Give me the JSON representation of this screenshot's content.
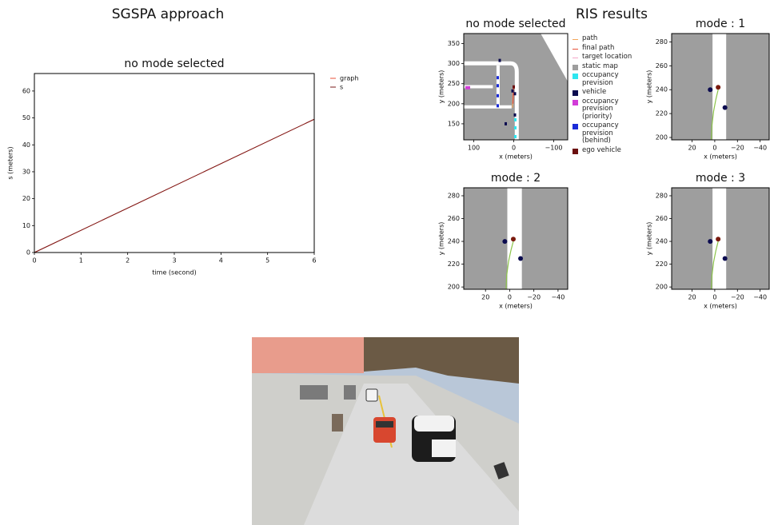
{
  "headings": {
    "left": "SGSPA approach",
    "right": "RIS results"
  },
  "chart_data": [
    {
      "type": "line",
      "title": "no mode selected",
      "xlabel": "time (second)",
      "ylabel": "s (meters)",
      "xlim": [
        0,
        6
      ],
      "ylim": [
        0,
        66.5
      ],
      "xticks": [
        0,
        1,
        2,
        3,
        4,
        5,
        6
      ],
      "yticks": [
        0,
        10,
        20,
        30,
        40,
        50,
        60
      ],
      "background": "#ffffff",
      "legend_loc": "outside right",
      "series": [
        {
          "name": "graph",
          "color": "#e8513a",
          "marker": "line",
          "x": [
            0,
            6
          ],
          "values": [
            0,
            49.5
          ]
        },
        {
          "name": "s",
          "color": "#7a1a1a",
          "marker": "line",
          "x": [
            0,
            6
          ],
          "values": [
            0,
            49.5
          ]
        }
      ]
    },
    {
      "type": "scatter",
      "title": "no mode selected",
      "xlabel": "x (meters)",
      "ylabel": "y (meters)",
      "xlim": [
        125,
        -135
      ],
      "ylim": [
        110,
        375
      ],
      "xticks": [
        100,
        0,
        {
          "value": -100,
          "label": "−100"
        }
      ],
      "yticks": [
        150,
        200,
        250,
        300,
        350
      ],
      "background": "#9e9e9e",
      "map": "intersection",
      "legend_loc": "outside right",
      "series": [
        {
          "name": "path",
          "color": "#f2a65a",
          "marker": "line",
          "x": [
            3,
            2,
            1
          ],
          "values": [
            190,
            215,
            238
          ]
        },
        {
          "name": "final path",
          "color": "#e8513a",
          "marker": "line",
          "x": [
            2,
            1,
            0
          ],
          "values": [
            200,
            225,
            242
          ]
        },
        {
          "name": "target location",
          "color": "#f4a6c8",
          "marker": "line",
          "x": [],
          "values": []
        },
        {
          "name": "static map",
          "color": "#9e9e9e",
          "marker": "square",
          "x": [],
          "values": []
        },
        {
          "name": "occupancy prevision",
          "color": "#2ee6f0",
          "marker": "square",
          "x": [
            -4,
            -4,
            -4
          ],
          "values": [
            118,
            140,
            160
          ]
        },
        {
          "name": "vehicle",
          "color": "#0b0b4f",
          "marker": "square",
          "x": [
            35,
            3,
            -3,
            -3,
            20
          ],
          "values": [
            308,
            232,
            225,
            172,
            150
          ]
        },
        {
          "name": "occupancy prevision (priority)",
          "color": "#d23cd8",
          "marker": "square",
          "x": [
            118,
            112
          ],
          "values": [
            240,
            240
          ]
        },
        {
          "name": "occupancy prevision (behind)",
          "color": "#1a2bd8",
          "marker": "square",
          "x": [
            40,
            40,
            40,
            40
          ],
          "values": [
            195,
            220,
            245,
            265
          ]
        },
        {
          "name": "ego vehicle",
          "color": "#6b0f0f",
          "marker": "square",
          "x": [
            0
          ],
          "values": [
            242
          ]
        }
      ]
    },
    {
      "type": "scatter",
      "title": "mode : 1",
      "xlabel": "x (meters)",
      "ylabel": "y (meters)",
      "xlim": [
        38,
        -48
      ],
      "ylim": [
        198,
        287
      ],
      "xticks": [
        20,
        0,
        {
          "value": -20,
          "label": "−20"
        },
        {
          "value": -40,
          "label": "−40"
        }
      ],
      "yticks": [
        200,
        220,
        240,
        260,
        280
      ],
      "background": "#9e9e9e",
      "map": "road",
      "series": [
        {
          "color": "#8bc34a",
          "marker": "line",
          "x": [
            3,
            2.5,
            1,
            -1,
            -3
          ],
          "values": [
            198,
            210,
            222,
            232,
            240
          ]
        },
        {
          "color": "#0b0b4f",
          "marker": "dot",
          "x": [
            4,
            -9
          ],
          "values": [
            240,
            225
          ]
        },
        {
          "color": "#7a1a0e",
          "marker": "dot",
          "x": [
            -3
          ],
          "values": [
            242
          ]
        }
      ]
    },
    {
      "type": "scatter",
      "title": "mode : 2",
      "xlabel": "x (meters)",
      "ylabel": "y (meters)",
      "xlim": [
        38,
        -48
      ],
      "ylim": [
        198,
        287
      ],
      "xticks": [
        20,
        0,
        {
          "value": -20,
          "label": "−20"
        },
        {
          "value": -40,
          "label": "−40"
        }
      ],
      "yticks": [
        200,
        220,
        240,
        260,
        280
      ],
      "background": "#9e9e9e",
      "map": "road",
      "series": [
        {
          "color": "#8bc34a",
          "marker": "line",
          "x": [
            3,
            2.5,
            1,
            -1,
            -3
          ],
          "values": [
            198,
            210,
            222,
            232,
            240
          ]
        },
        {
          "color": "#0b0b4f",
          "marker": "dot",
          "x": [
            4,
            -9
          ],
          "values": [
            240,
            225
          ]
        },
        {
          "color": "#7a1a0e",
          "marker": "dot",
          "x": [
            -3
          ],
          "values": [
            242
          ]
        }
      ]
    },
    {
      "type": "scatter",
      "title": "mode : 3",
      "xlabel": "x (meters)",
      "ylabel": "y (meters)",
      "xlim": [
        38,
        -48
      ],
      "ylim": [
        198,
        287
      ],
      "xticks": [
        20,
        0,
        {
          "value": -20,
          "label": "−20"
        },
        {
          "value": -40,
          "label": "−40"
        }
      ],
      "yticks": [
        200,
        220,
        240,
        260,
        280
      ],
      "background": "#9e9e9e",
      "map": "road",
      "series": [
        {
          "color": "#8bc34a",
          "marker": "line",
          "x": [
            3,
            2.5,
            1,
            -1,
            -3
          ],
          "values": [
            198,
            210,
            222,
            232,
            240
          ]
        },
        {
          "color": "#0b0b4f",
          "marker": "dot",
          "x": [
            4,
            -9
          ],
          "values": [
            240,
            225
          ]
        },
        {
          "color": "#7a1a0e",
          "marker": "dot",
          "x": [
            -3
          ],
          "values": [
            242
          ]
        }
      ]
    }
  ]
}
